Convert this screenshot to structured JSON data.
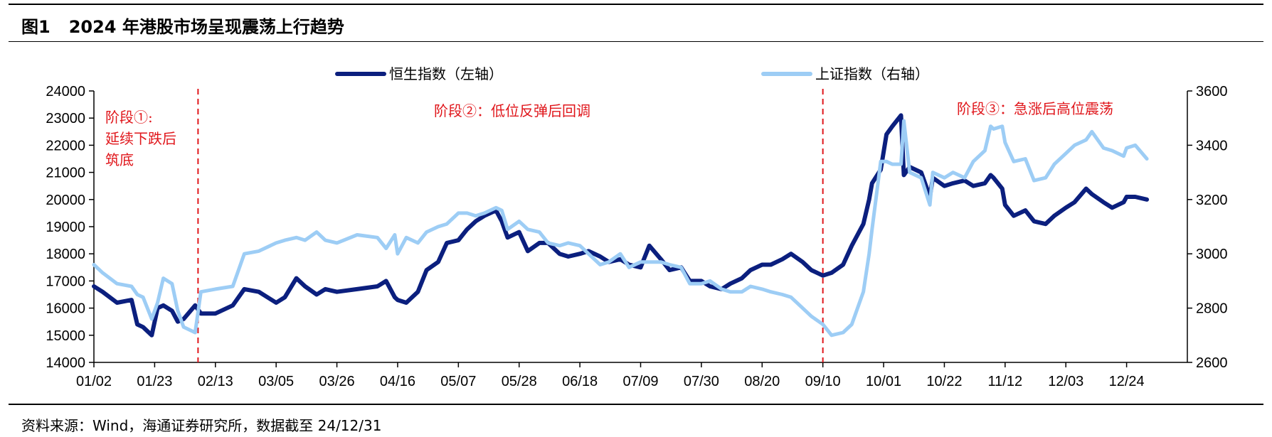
{
  "figure": {
    "number": "图1",
    "title": "2024 年港股市场呈现震荡上行趋势"
  },
  "source_note": "资料来源：Wind，海通证券研究所，数据截至 24/12/31",
  "chart_data": {
    "type": "line",
    "title": "2024 年港股市场呈现震荡上行趋势",
    "x_tick_labels": [
      "01/02",
      "01/23",
      "02/13",
      "03/05",
      "03/26",
      "04/16",
      "05/07",
      "05/28",
      "06/18",
      "07/09",
      "07/30",
      "08/20",
      "09/10",
      "10/01",
      "10/22",
      "11/12",
      "12/03",
      "12/24"
    ],
    "y_left": {
      "range": [
        14000,
        24000
      ],
      "ticks": [
        14000,
        15000,
        16000,
        17000,
        18000,
        19000,
        20000,
        21000,
        22000,
        23000,
        24000
      ]
    },
    "y_right": {
      "range": [
        2600,
        3600
      ],
      "ticks": [
        2600,
        2800,
        3000,
        3200,
        3400,
        3600
      ]
    },
    "legend": {
      "placement": "top-center",
      "items": [
        "恒生指数（左轴）",
        "上证指数（右轴）"
      ]
    },
    "series": [
      {
        "name": "恒生指数（左轴）",
        "axis": "left",
        "color": "#0b1f7e",
        "points": [
          [
            "01/02",
            16800
          ],
          [
            "01/05",
            16600
          ],
          [
            "01/10",
            16200
          ],
          [
            "01/15",
            16300
          ],
          [
            "01/17",
            15400
          ],
          [
            "01/19",
            15300
          ],
          [
            "01/22",
            15000
          ],
          [
            "01/24",
            16000
          ],
          [
            "01/26",
            16100
          ],
          [
            "01/29",
            15900
          ],
          [
            "01/31",
            15500
          ],
          [
            "02/02",
            15600
          ],
          [
            "02/06",
            16100
          ],
          [
            "02/08",
            15800
          ],
          [
            "02/13",
            15800
          ],
          [
            "02/19",
            16100
          ],
          [
            "02/23",
            16700
          ],
          [
            "02/28",
            16600
          ],
          [
            "03/05",
            16200
          ],
          [
            "03/08",
            16400
          ],
          [
            "03/12",
            17100
          ],
          [
            "03/15",
            16800
          ],
          [
            "03/19",
            16500
          ],
          [
            "03/22",
            16700
          ],
          [
            "03/26",
            16600
          ],
          [
            "04/02",
            16700
          ],
          [
            "04/09",
            16800
          ],
          [
            "04/12",
            17000
          ],
          [
            "04/15",
            16400
          ],
          [
            "04/16",
            16300
          ],
          [
            "04/19",
            16200
          ],
          [
            "04/23",
            16600
          ],
          [
            "04/26",
            17400
          ],
          [
            "04/30",
            17700
          ],
          [
            "05/03",
            18400
          ],
          [
            "05/07",
            18500
          ],
          [
            "05/10",
            18900
          ],
          [
            "05/13",
            19200
          ],
          [
            "05/16",
            19400
          ],
          [
            "05/20",
            19600
          ],
          [
            "05/22",
            19200
          ],
          [
            "05/24",
            18600
          ],
          [
            "05/28",
            18800
          ],
          [
            "05/31",
            18100
          ],
          [
            "06/04",
            18400
          ],
          [
            "06/07",
            18400
          ],
          [
            "06/11",
            18000
          ],
          [
            "06/14",
            17900
          ],
          [
            "06/18",
            18000
          ],
          [
            "06/21",
            18100
          ],
          [
            "06/25",
            17900
          ],
          [
            "06/28",
            17700
          ],
          [
            "07/02",
            17800
          ],
          [
            "07/05",
            17600
          ],
          [
            "07/09",
            17500
          ],
          [
            "07/12",
            18300
          ],
          [
            "07/16",
            17800
          ],
          [
            "07/19",
            17400
          ],
          [
            "07/23",
            17500
          ],
          [
            "07/26",
            17000
          ],
          [
            "07/30",
            17000
          ],
          [
            "08/02",
            16800
          ],
          [
            "08/06",
            16700
          ],
          [
            "08/09",
            16900
          ],
          [
            "08/13",
            17100
          ],
          [
            "08/16",
            17400
          ],
          [
            "08/20",
            17600
          ],
          [
            "08/23",
            17600
          ],
          [
            "08/27",
            17800
          ],
          [
            "08/30",
            18000
          ],
          [
            "09/03",
            17700
          ],
          [
            "09/06",
            17400
          ],
          [
            "09/10",
            17200
          ],
          [
            "09/13",
            17300
          ],
          [
            "09/17",
            17600
          ],
          [
            "09/20",
            18300
          ],
          [
            "09/24",
            19100
          ],
          [
            "09/26",
            20000
          ],
          [
            "09/27",
            20600
          ],
          [
            "09/30",
            21100
          ],
          [
            "10/02",
            22400
          ],
          [
            "10/04",
            22700
          ],
          [
            "10/07",
            23100
          ],
          [
            "10/08",
            20900
          ],
          [
            "10/10",
            21200
          ],
          [
            "10/14",
            21000
          ],
          [
            "10/17",
            20100
          ],
          [
            "10/18",
            20800
          ],
          [
            "10/22",
            20500
          ],
          [
            "10/25",
            20600
          ],
          [
            "10/29",
            20700
          ],
          [
            "11/01",
            20500
          ],
          [
            "11/05",
            20600
          ],
          [
            "11/07",
            20900
          ],
          [
            "11/08",
            20800
          ],
          [
            "11/11",
            20400
          ],
          [
            "11/12",
            19800
          ],
          [
            "11/15",
            19400
          ],
          [
            "11/19",
            19600
          ],
          [
            "11/22",
            19200
          ],
          [
            "11/26",
            19100
          ],
          [
            "11/29",
            19400
          ],
          [
            "12/03",
            19700
          ],
          [
            "12/06",
            19900
          ],
          [
            "12/10",
            20400
          ],
          [
            "12/12",
            20200
          ],
          [
            "12/16",
            19900
          ],
          [
            "12/19",
            19700
          ],
          [
            "12/23",
            19900
          ],
          [
            "12/24",
            20100
          ],
          [
            "12/27",
            20100
          ],
          [
            "12/31",
            20000
          ]
        ]
      },
      {
        "name": "上证指数（右轴）",
        "axis": "right",
        "color": "#9dcdf5",
        "points": [
          [
            "01/02",
            2960
          ],
          [
            "01/05",
            2930
          ],
          [
            "01/10",
            2890
          ],
          [
            "01/15",
            2880
          ],
          [
            "01/17",
            2850
          ],
          [
            "01/19",
            2840
          ],
          [
            "01/22",
            2760
          ],
          [
            "01/24",
            2820
          ],
          [
            "01/26",
            2910
          ],
          [
            "01/29",
            2890
          ],
          [
            "01/31",
            2790
          ],
          [
            "02/02",
            2730
          ],
          [
            "02/06",
            2710
          ],
          [
            "02/08",
            2860
          ],
          [
            "02/13",
            2870
          ],
          [
            "02/19",
            2880
          ],
          [
            "02/23",
            3000
          ],
          [
            "02/28",
            3010
          ],
          [
            "03/05",
            3040
          ],
          [
            "03/08",
            3050
          ],
          [
            "03/12",
            3060
          ],
          [
            "03/15",
            3050
          ],
          [
            "03/19",
            3080
          ],
          [
            "03/22",
            3050
          ],
          [
            "03/26",
            3040
          ],
          [
            "04/02",
            3070
          ],
          [
            "04/09",
            3060
          ],
          [
            "04/12",
            3020
          ],
          [
            "04/15",
            3070
          ],
          [
            "04/16",
            3000
          ],
          [
            "04/19",
            3060
          ],
          [
            "04/23",
            3040
          ],
          [
            "04/26",
            3080
          ],
          [
            "04/30",
            3100
          ],
          [
            "05/03",
            3110
          ],
          [
            "05/07",
            3150
          ],
          [
            "05/10",
            3150
          ],
          [
            "05/13",
            3140
          ],
          [
            "05/16",
            3150
          ],
          [
            "05/20",
            3170
          ],
          [
            "05/22",
            3160
          ],
          [
            "05/24",
            3090
          ],
          [
            "05/28",
            3120
          ],
          [
            "05/31",
            3090
          ],
          [
            "06/04",
            3080
          ],
          [
            "06/07",
            3040
          ],
          [
            "06/11",
            3030
          ],
          [
            "06/14",
            3040
          ],
          [
            "06/18",
            3030
          ],
          [
            "06/21",
            3000
          ],
          [
            "06/25",
            2960
          ],
          [
            "06/28",
            2970
          ],
          [
            "07/02",
            3000
          ],
          [
            "07/05",
            2950
          ],
          [
            "07/09",
            2970
          ],
          [
            "07/12",
            2970
          ],
          [
            "07/16",
            2970
          ],
          [
            "07/19",
            2960
          ],
          [
            "07/23",
            2950
          ],
          [
            "07/26",
            2890
          ],
          [
            "07/30",
            2890
          ],
          [
            "08/02",
            2900
          ],
          [
            "08/06",
            2870
          ],
          [
            "08/09",
            2860
          ],
          [
            "08/13",
            2860
          ],
          [
            "08/16",
            2880
          ],
          [
            "08/20",
            2870
          ],
          [
            "08/23",
            2860
          ],
          [
            "08/27",
            2850
          ],
          [
            "08/30",
            2840
          ],
          [
            "09/03",
            2800
          ],
          [
            "09/06",
            2770
          ],
          [
            "09/10",
            2740
          ],
          [
            "09/13",
            2700
          ],
          [
            "09/17",
            2710
          ],
          [
            "09/20",
            2740
          ],
          [
            "09/24",
            2860
          ],
          [
            "09/26",
            3000
          ],
          [
            "09/27",
            3090
          ],
          [
            "09/30",
            3340
          ],
          [
            "10/02",
            3340
          ],
          [
            "10/04",
            3330
          ],
          [
            "10/07",
            3330
          ],
          [
            "10/08",
            3490
          ],
          [
            "10/10",
            3300
          ],
          [
            "10/14",
            3280
          ],
          [
            "10/17",
            3180
          ],
          [
            "10/18",
            3300
          ],
          [
            "10/22",
            3280
          ],
          [
            "10/25",
            3300
          ],
          [
            "10/29",
            3280
          ],
          [
            "11/01",
            3340
          ],
          [
            "11/05",
            3380
          ],
          [
            "11/07",
            3470
          ],
          [
            "11/08",
            3460
          ],
          [
            "11/11",
            3470
          ],
          [
            "11/12",
            3410
          ],
          [
            "11/15",
            3340
          ],
          [
            "11/19",
            3350
          ],
          [
            "11/22",
            3270
          ],
          [
            "11/26",
            3280
          ],
          [
            "11/29",
            3330
          ],
          [
            "12/03",
            3370
          ],
          [
            "12/06",
            3400
          ],
          [
            "12/10",
            3420
          ],
          [
            "12/12",
            3450
          ],
          [
            "12/16",
            3390
          ],
          [
            "12/19",
            3380
          ],
          [
            "12/23",
            3360
          ],
          [
            "12/24",
            3390
          ],
          [
            "12/27",
            3400
          ],
          [
            "12/31",
            3350
          ]
        ]
      }
    ],
    "vertical_markers": [
      {
        "at": "02/07",
        "style": "dashed",
        "color": "#e0161b"
      },
      {
        "at": "09/10",
        "style": "dashed",
        "color": "#e0161b"
      }
    ],
    "annotations": [
      {
        "lines": [
          "阶段①:",
          "延续下跌后",
          "筑底"
        ],
        "color": "#e0161b"
      },
      {
        "lines": [
          "阶段②：低位反弹后回调"
        ],
        "color": "#e0161b"
      },
      {
        "lines": [
          "阶段③：急涨后高位震荡"
        ],
        "color": "#e0161b"
      }
    ],
    "grid": false
  }
}
